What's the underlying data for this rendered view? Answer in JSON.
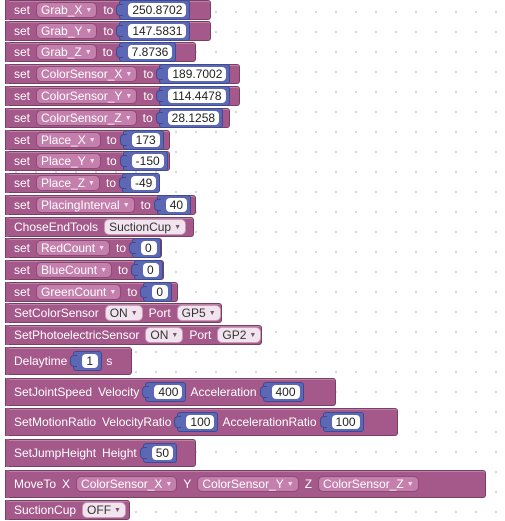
{
  "blocks": {
    "set_kw": "set",
    "to_kw": "to",
    "grab_x": {
      "var": "Grab_X",
      "value": "250.8702"
    },
    "grab_y": {
      "var": "Grab_Y",
      "value": "147.5831"
    },
    "grab_z": {
      "var": "Grab_Z",
      "value": "7.8736"
    },
    "cs_x": {
      "var": "ColorSensor_X",
      "value": "189.7002"
    },
    "cs_y": {
      "var": "ColorSensor_Y",
      "value": "114.4478"
    },
    "cs_z": {
      "var": "ColorSensor_Z",
      "value": "28.1258"
    },
    "place_x": {
      "var": "Place_X",
      "value": "173"
    },
    "place_y": {
      "var": "Place_Y",
      "value": "-150"
    },
    "place_z": {
      "var": "Place_Z",
      "value": "-49"
    },
    "placing_interval": {
      "var": "PlacingInterval",
      "value": "40"
    },
    "chose_end_tools": {
      "label": "ChoseEndTools",
      "option": "SuctionCup"
    },
    "red_count": {
      "var": "RedCount",
      "value": "0"
    },
    "blue_count": {
      "var": "BlueCount",
      "value": "0"
    },
    "green_count": {
      "var": "GreenCount",
      "value": "0"
    },
    "set_color_sensor": {
      "label": "SetColorSensor",
      "state": "ON",
      "port_label": "Port",
      "port": "GP5"
    },
    "set_photo_sensor": {
      "label": "SetPhotoelectricSensor",
      "state": "ON",
      "port_label": "Port",
      "port": "GP2"
    },
    "delaytime": {
      "label": "Delaytime",
      "value": "1",
      "unit": "s"
    },
    "joint_speed": {
      "label": "SetJointSpeed",
      "velocity_label": "Velocity",
      "velocity": "400",
      "accel_label": "Acceleration",
      "accel": "400"
    },
    "motion_ratio": {
      "label": "SetMotionRatio",
      "velocity_label": "VelocityRatio",
      "velocity": "100",
      "accel_label": "AccelerationRatio",
      "accel": "100"
    },
    "jump_height": {
      "label": "SetJumpHeight",
      "height_label": "Height",
      "height": "50"
    },
    "move_to": {
      "label": "MoveTo",
      "x_label": "X",
      "x": "ColorSensor_X",
      "y_label": "Y",
      "y": "ColorSensor_Y",
      "z_label": "Z",
      "z": "ColorSensor_Z"
    },
    "suction_cup": {
      "label": "SuctionCup",
      "state": "OFF"
    }
  },
  "colors": {
    "block": "#a5598a",
    "number_socket": "#5d68b5",
    "dropdown": "#c47fac",
    "background": "#ffffff"
  }
}
